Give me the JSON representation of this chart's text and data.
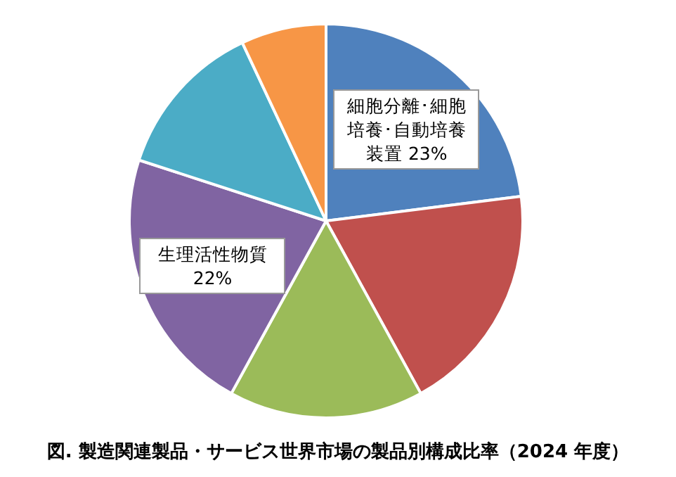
{
  "chart_data": {
    "type": "pie",
    "title": "図.  製造関連製品・サービス世界市場の製品別構成比率（2024 年度）",
    "categories": [
      "細胞分離･細胞培養･自動培養装置",
      null,
      null,
      "生理活性物質",
      null,
      null
    ],
    "values": [
      23,
      19,
      16,
      22,
      13,
      7
    ],
    "colors": [
      "#4f81bd",
      "#c0504d",
      "#9bbb59",
      "#8064a2",
      "#4bacc6",
      "#f79646"
    ],
    "value_labels": [
      "23%",
      null,
      null,
      "22%",
      null,
      null
    ]
  }
}
